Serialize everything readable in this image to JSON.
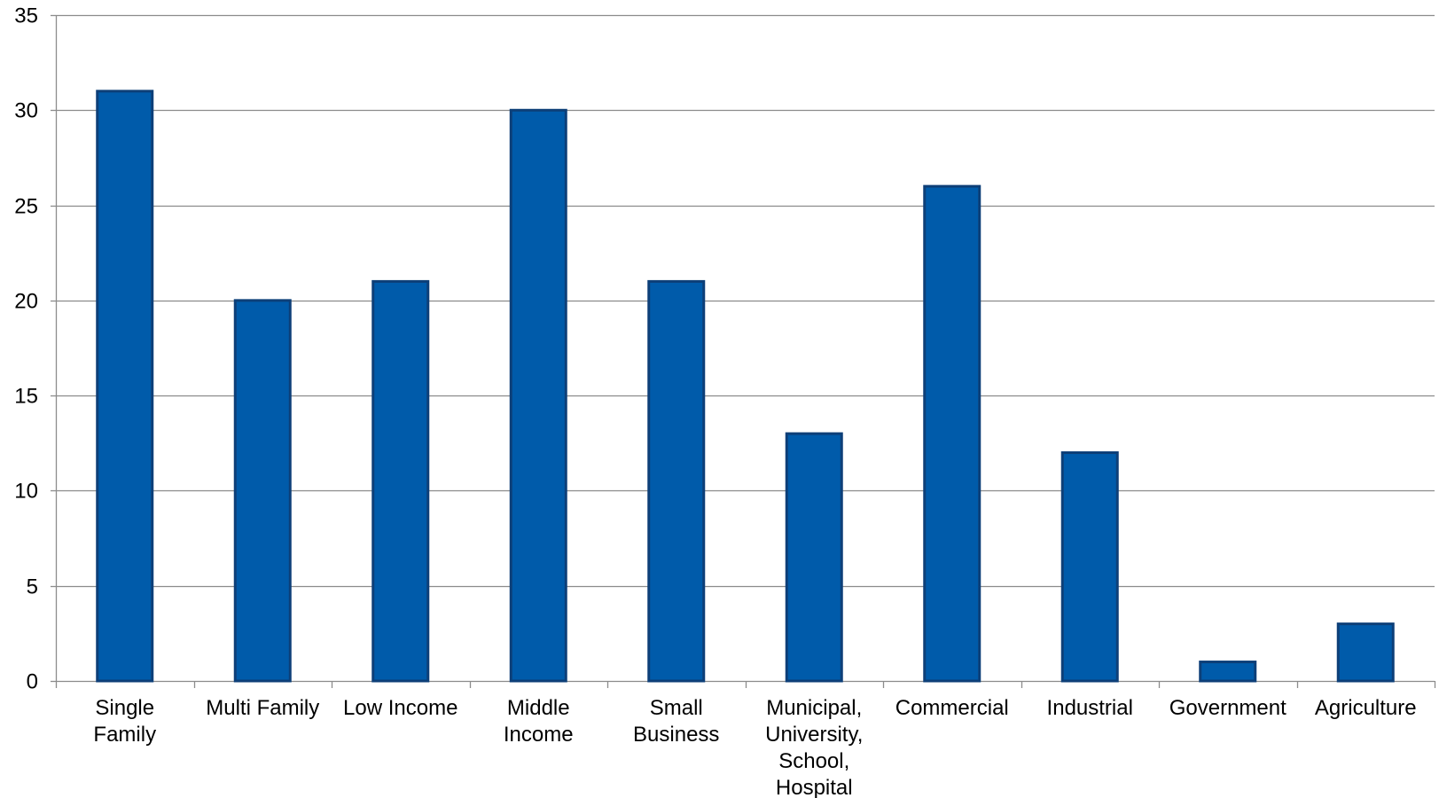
{
  "chart_data": {
    "type": "bar",
    "categories": [
      [
        "Single",
        "Family"
      ],
      [
        "Multi Family"
      ],
      [
        "Low Income"
      ],
      [
        "Middle",
        "Income"
      ],
      [
        "Small",
        "Business"
      ],
      [
        "Municipal,",
        "University,",
        "School,",
        "Hospital"
      ],
      [
        "Commercial"
      ],
      [
        "Industrial"
      ],
      [
        "Government"
      ],
      [
        "Agriculture"
      ]
    ],
    "values": [
      31,
      20,
      21,
      30,
      21,
      13,
      26,
      12,
      1,
      3
    ],
    "ylim": [
      0,
      35
    ],
    "yticks": [
      0,
      5,
      10,
      15,
      20,
      25,
      30,
      35
    ],
    "grid": true,
    "title": "",
    "xlabel": "",
    "ylabel": "",
    "colors": {
      "bar_fill": "#005BAA",
      "bar_edge": "#0D3F78",
      "grid": "#8C8C8C",
      "axis": "#8C8C8C"
    }
  }
}
